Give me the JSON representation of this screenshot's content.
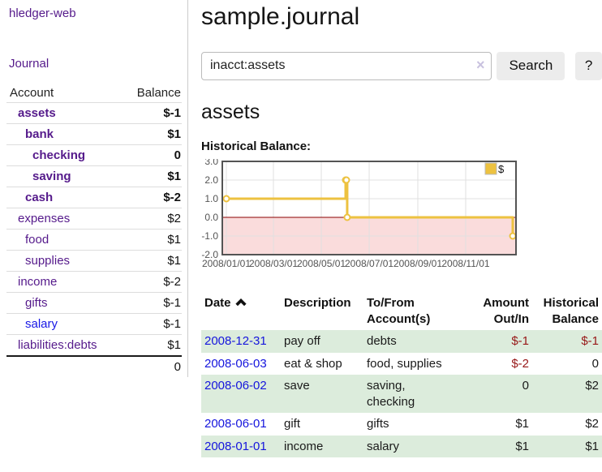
{
  "sidebar": {
    "app_title": "hledger-web",
    "nav": {
      "journal_label": "Journal"
    },
    "accounts_table": {
      "headers": {
        "account": "Account",
        "balance": "Balance"
      },
      "rows": [
        {
          "name": "assets",
          "depth": 1,
          "bold": true,
          "balance": "$-1",
          "balance_color": "neg"
        },
        {
          "name": "bank",
          "depth": 2,
          "bold": true,
          "balance": "$1",
          "balance_color": "normal"
        },
        {
          "name": "checking",
          "depth": 3,
          "bold": true,
          "balance": "0",
          "balance_color": "normal"
        },
        {
          "name": "saving",
          "depth": 3,
          "bold": true,
          "balance": "$1",
          "balance_color": "normal"
        },
        {
          "name": "cash",
          "depth": 2,
          "bold": true,
          "balance": "$-2",
          "balance_color": "neg"
        },
        {
          "name": "expenses",
          "depth": 1,
          "bold": false,
          "balance": "$2",
          "balance_color": "normal"
        },
        {
          "name": "food",
          "depth": 2,
          "bold": false,
          "balance": "$1",
          "balance_color": "normal"
        },
        {
          "name": "supplies",
          "depth": 2,
          "bold": false,
          "balance": "$1",
          "balance_color": "normal"
        },
        {
          "name": "income",
          "depth": 1,
          "bold": false,
          "balance": "$-2",
          "balance_color": "neg-light"
        },
        {
          "name": "gifts",
          "depth": 2,
          "bold": false,
          "balance": "$-1",
          "balance_color": "neg-light"
        },
        {
          "name": "salary",
          "depth": 2,
          "bold": false,
          "balance": "$-1",
          "balance_color": "neg-light",
          "link_color": "blue"
        },
        {
          "name": "liabilities:debts",
          "depth": 1,
          "bold": false,
          "balance": "$1",
          "balance_color": "normal"
        }
      ],
      "total": "0"
    }
  },
  "header": {
    "title": "sample.journal"
  },
  "search": {
    "query": "inacct:assets",
    "clear_icon": "×",
    "search_label": "Search",
    "help_label": "?"
  },
  "account_page": {
    "title": "assets",
    "chart_label": "Historical Balance:"
  },
  "chart_data": {
    "type": "line",
    "title": "Historical Balance",
    "series": [
      {
        "name": "$",
        "color": "#edc240",
        "step": true,
        "points": [
          [
            "2008-01-01",
            1
          ],
          [
            "2008-06-01",
            2
          ],
          [
            "2008-06-02",
            2
          ],
          [
            "2008-06-03",
            0
          ],
          [
            "2008-12-31",
            -1
          ]
        ]
      }
    ],
    "x_range": [
      "2008-01-01",
      "2008-12-31"
    ],
    "x_ticks": [
      "2008/01/01",
      "2008/03/01",
      "2008/05/01",
      "2008/07/01",
      "2008/09/01",
      "2008/11/01"
    ],
    "y_ticks": [
      "3.0",
      "2.0",
      "1.0",
      "0.0",
      "-1.0",
      "-2.0"
    ],
    "ylim": [
      -2,
      3
    ],
    "grid": true,
    "legend_position": "top-right",
    "negative_region_color": "#fadcdc",
    "zero_line_color": "#8b0000",
    "grid_color": "#e0e0e0",
    "border_color": "#545454"
  },
  "register_table": {
    "headers": {
      "date": "Date",
      "sort_icon": "chevron-up",
      "description": "Description",
      "accounts": "To/From\nAccount(s)",
      "amount": "Amount\nOut/In",
      "balance": "Historical\nBalance"
    },
    "rows": [
      {
        "date": "2008-12-31",
        "description": "pay off",
        "accounts": "debts",
        "amount": "$-1",
        "amount_negative": true,
        "balance": "$-1",
        "balance_negative": true
      },
      {
        "date": "2008-06-03",
        "description": "eat & shop",
        "accounts": "food, supplies",
        "amount": "$-2",
        "amount_negative": true,
        "balance": "0",
        "balance_negative": false
      },
      {
        "date": "2008-06-02",
        "description": "save",
        "accounts": "saving,\nchecking",
        "amount": "0",
        "amount_negative": false,
        "balance": "$2",
        "balance_negative": false
      },
      {
        "date": "2008-06-01",
        "description": "gift",
        "accounts": "gifts",
        "amount": "$1",
        "amount_negative": false,
        "balance": "$2",
        "balance_negative": false
      },
      {
        "date": "2008-01-01",
        "description": "income",
        "accounts": "salary",
        "amount": "$1",
        "amount_negative": false,
        "balance": "$1",
        "balance_negative": false
      }
    ]
  }
}
